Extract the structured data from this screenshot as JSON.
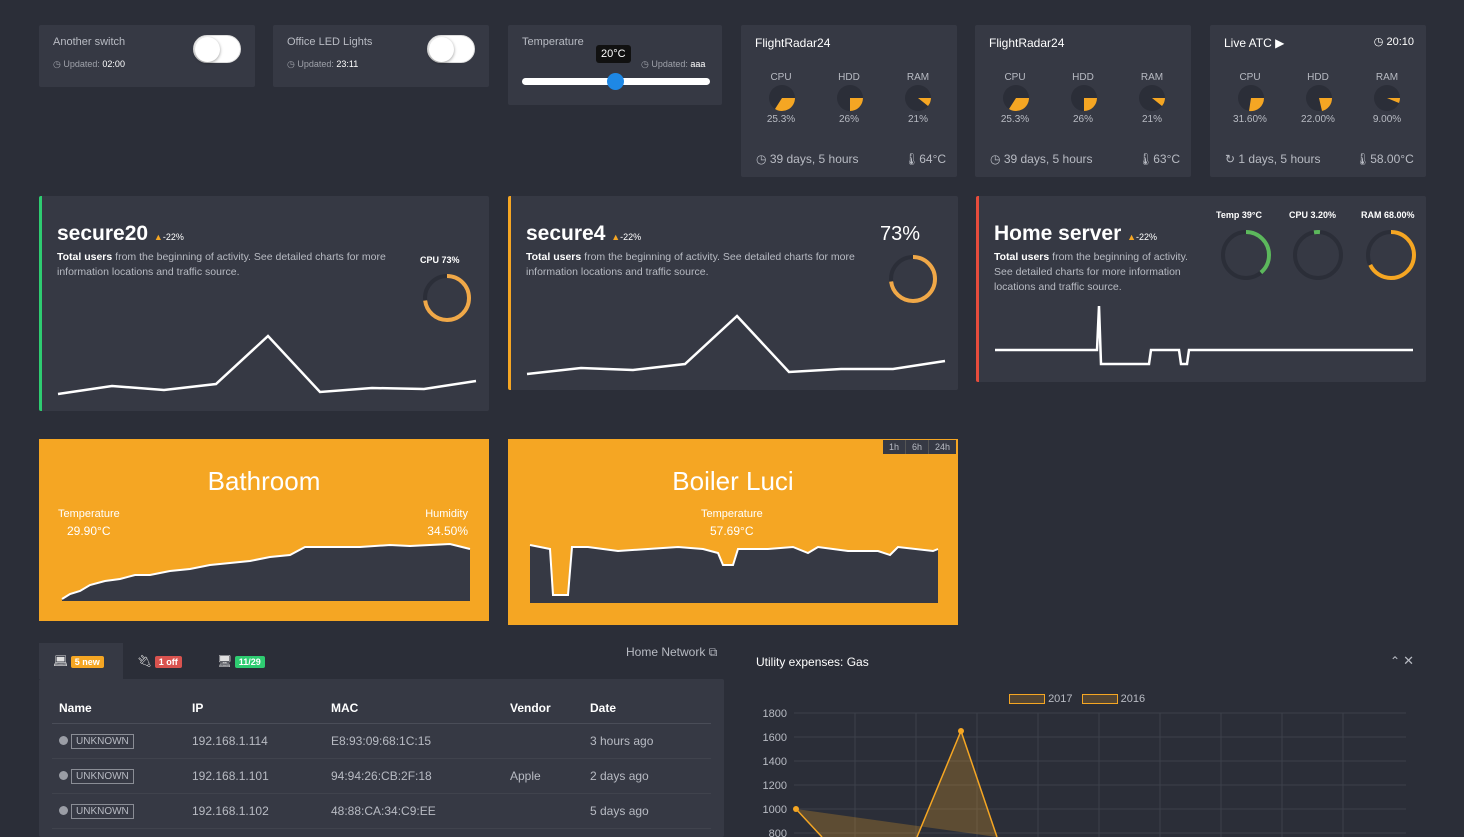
{
  "switches": [
    {
      "title": "Another switch",
      "updated_label": "Updated:",
      "updated": "02:00"
    },
    {
      "title": "Office LED Lights",
      "updated_label": "Updated:",
      "updated": "23:11"
    }
  ],
  "temperature": {
    "title": "Temperature",
    "value_label": "20°C",
    "updated_label": "Updated:",
    "updated": "aaa",
    "slider_fraction": 0.5
  },
  "flightradar": [
    {
      "title": "FlightRadar24",
      "labels": [
        "CPU",
        "HDD",
        "RAM"
      ],
      "values": [
        "25.3%",
        "26%",
        "21%"
      ],
      "uptime": "39 days, 5 hours",
      "temp": "64°C"
    },
    {
      "title": "FlightRadar24",
      "labels": [
        "CPU",
        "HDD",
        "RAM"
      ],
      "values": [
        "25.3%",
        "26%",
        "21%"
      ],
      "uptime": "39 days, 5 hours",
      "temp": "63°C"
    },
    {
      "title": "Live ATC",
      "time": "20:10",
      "labels": [
        "CPU",
        "HDD",
        "RAM"
      ],
      "values": [
        "31.60%",
        "22.00%",
        "9.00%"
      ],
      "uptime": "1 days, 5 hours",
      "temp": "58.00°C"
    }
  ],
  "stats": [
    {
      "title": "secure20",
      "delta": "-22%",
      "desc_bold": "Total users",
      "desc": "from the beginning of activity. See detailed charts for more",
      "desc2": "information locations and traffic source.",
      "cpu_label": "CPU 73%",
      "accent": "#2ecc71",
      "cpu_fraction": 0.73
    },
    {
      "title": "secure4",
      "delta": "-22%",
      "desc_bold": "Total users",
      "desc": "from the beginning of activity. See detailed charts for more",
      "desc2": "information locations and traffic source.",
      "big_value": "73%",
      "accent": "#f5a623",
      "cpu_fraction": 0.73
    },
    {
      "title": "Home server",
      "delta": "-22%",
      "desc_bold": "Total users",
      "desc": "from the beginning of activity.",
      "desc2": "See detailed charts for more information",
      "desc3": "locations and traffic source.",
      "accent": "#e74c3c",
      "gauges": [
        {
          "label": "Temp 39°C",
          "fraction": 0.39,
          "color": "#5cb85c"
        },
        {
          "label": "CPU 3.20%",
          "fraction": 0.032,
          "color": "#5cb85c"
        },
        {
          "label": "RAM 68.00%",
          "fraction": 0.68,
          "color": "#f5a623"
        }
      ]
    }
  ],
  "sensors": {
    "bathroom": {
      "title": "Bathroom",
      "temp_label": "Temperature",
      "temp": "29.90°C",
      "hum_label": "Humidity",
      "hum": "34.50%"
    },
    "boiler": {
      "title": "Boiler Luci",
      "temp_label": "Temperature",
      "temp": "57.69°C",
      "ranges": [
        "1h",
        "6h",
        "24h"
      ]
    }
  },
  "network": {
    "title": "Home Network",
    "tabs": [
      {
        "badge": "5 new",
        "color": "#f5a623"
      },
      {
        "badge": "1 off",
        "color": "#d9534f"
      },
      {
        "badge": "11/29",
        "color": "#2ecc71"
      }
    ],
    "headers": [
      "Name",
      "IP",
      "MAC",
      "Vendor",
      "Date"
    ],
    "rows": [
      {
        "name": "UNKNOWN",
        "ip": "192.168.1.114",
        "mac": "E8:93:09:68:1C:15",
        "vendor": "",
        "date": "3 hours ago"
      },
      {
        "name": "UNKNOWN",
        "ip": "192.168.1.101",
        "mac": "94:94:26:CB:2F:18",
        "vendor": "Apple",
        "date": "2 days ago"
      },
      {
        "name": "UNKNOWN",
        "ip": "192.168.1.102",
        "mac": "48:88:CA:34:C9:EE",
        "vendor": "",
        "date": "5 days ago"
      }
    ]
  },
  "gas": {
    "title": "Utility expenses: Gas",
    "chart_data": {
      "type": "area",
      "series": [
        {
          "name": "2017",
          "values": [
            1000,
            800,
            1650,
            800
          ]
        },
        {
          "name": "2016"
        }
      ],
      "y_ticks": [
        "1800",
        "1600",
        "1400",
        "1200",
        "1000",
        "800"
      ],
      "ylim": [
        800,
        1800
      ]
    }
  }
}
